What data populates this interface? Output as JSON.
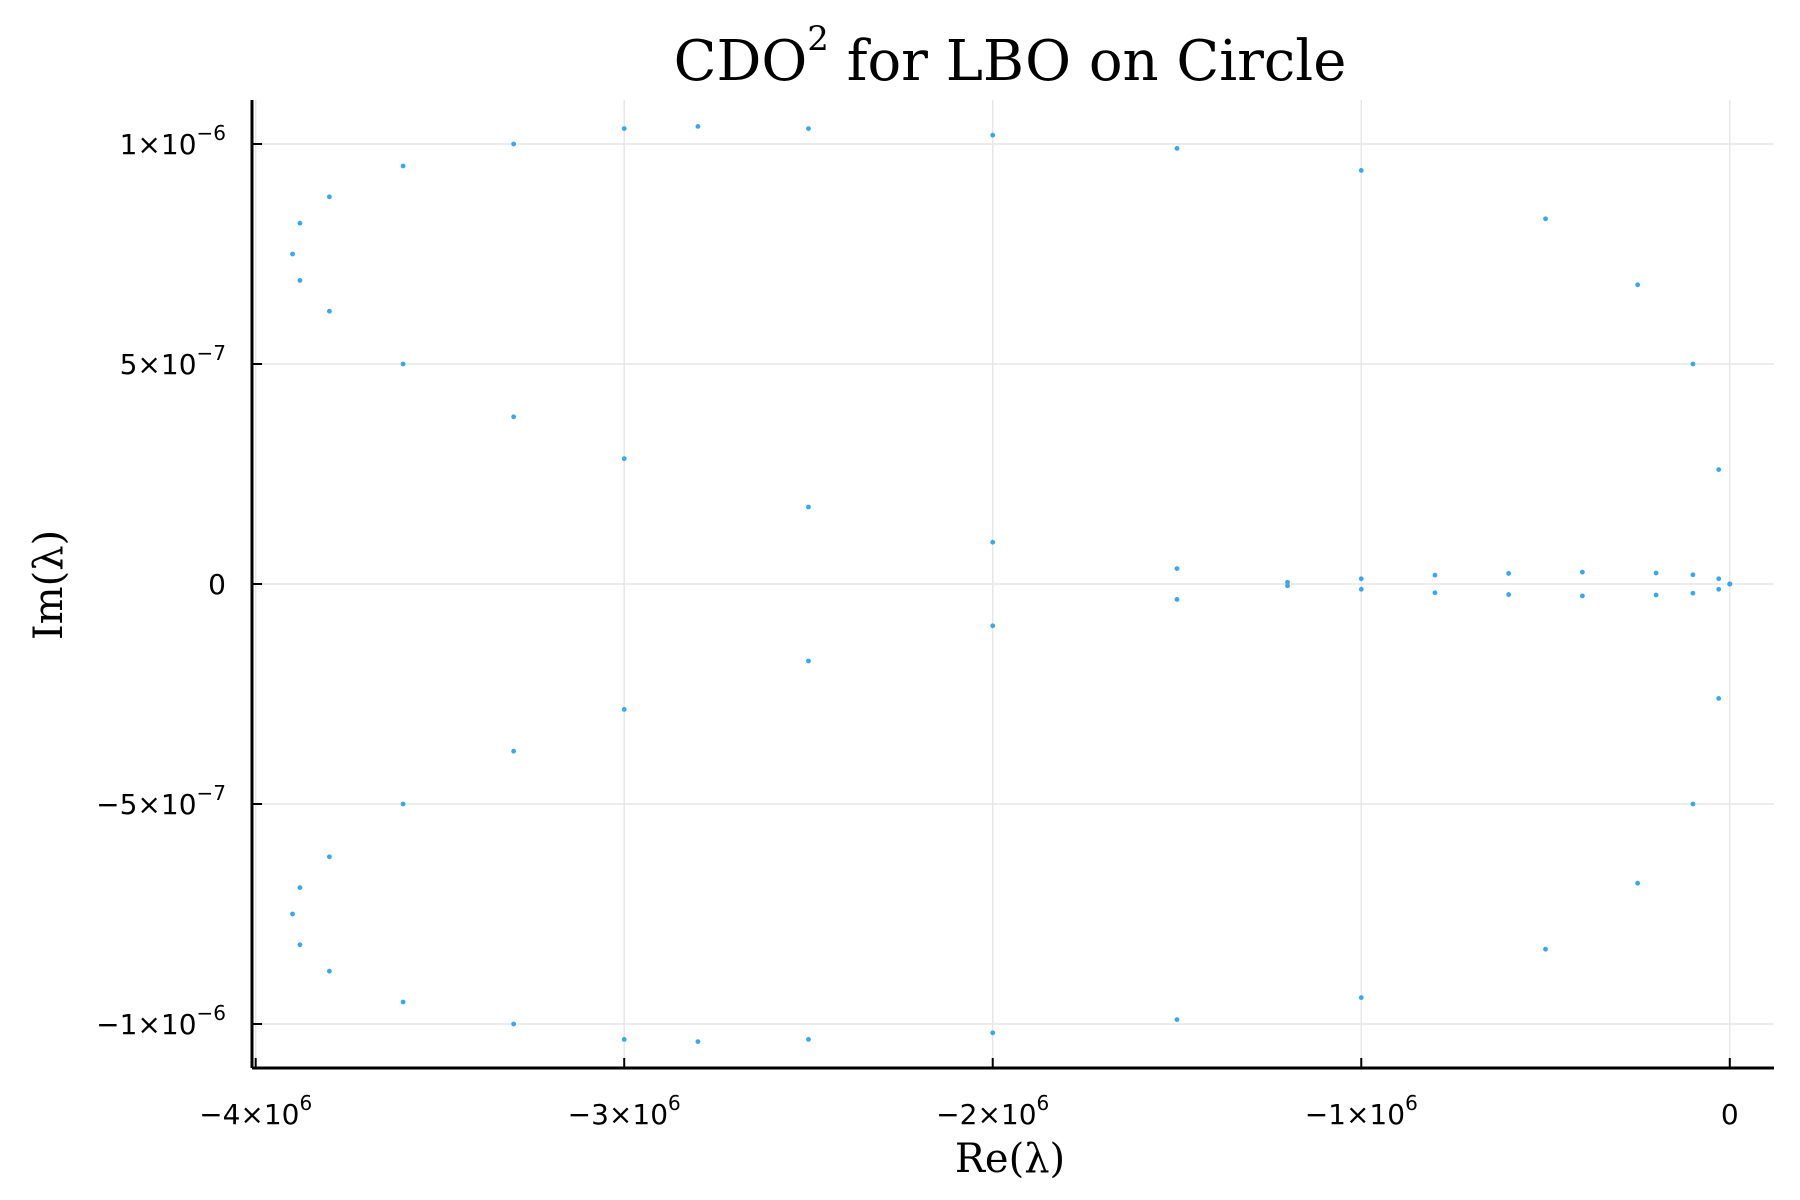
{
  "chart_data": {
    "type": "scatter",
    "title": "CDO² for LBO on Circle",
    "title_main": "CDO",
    "title_sup": "2",
    "title_rest": " for LBO on Circle",
    "xlabel": "Re(λ)",
    "ylabel": "Im(λ)",
    "xlim": [
      -4010000,
      120000
    ],
    "ylim": [
      -1.1e-06,
      1.1e-06
    ],
    "grid": true,
    "legend": "none",
    "color": "#36a8ee",
    "x_ticks": [
      {
        "value": -4000000,
        "base": "−4×10",
        "exp": "6"
      },
      {
        "value": -3000000,
        "base": "−3×10",
        "exp": "6"
      },
      {
        "value": -2000000,
        "base": "−2×10",
        "exp": "6"
      },
      {
        "value": -1000000,
        "base": "−1×10",
        "exp": "6"
      },
      {
        "value": 0,
        "base": "0",
        "exp": ""
      }
    ],
    "y_ticks": [
      {
        "value": 1e-06,
        "base": "1×10",
        "exp": "−6"
      },
      {
        "value": 5e-07,
        "base": "5×10",
        "exp": "−7"
      },
      {
        "value": 0,
        "base": "0",
        "exp": ""
      },
      {
        "value": -5e-07,
        "base": "−5×10",
        "exp": "−7"
      },
      {
        "value": -1e-06,
        "base": "−1×10",
        "exp": "−6"
      }
    ],
    "series": [
      {
        "values": [
          [
            0,
            0
          ],
          [
            -30000,
            2.6e-07
          ],
          [
            -100000,
            5e-07
          ],
          [
            -250000,
            6.8e-07
          ],
          [
            -500000,
            8.3e-07
          ],
          [
            -1000000,
            9.4e-07
          ],
          [
            -1500000,
            9.9e-07
          ],
          [
            -2000000,
            1.02e-06
          ],
          [
            -2500000,
            1.035e-06
          ],
          [
            -2800000,
            1.04e-06
          ],
          [
            -3000000,
            1.035e-06
          ],
          [
            -3300000,
            1e-06
          ],
          [
            -3600000,
            9.5e-07
          ],
          [
            -3800000,
            8.8e-07
          ],
          [
            -3880000,
            8.2e-07
          ],
          [
            -3900000,
            7.5e-07
          ],
          [
            -3880000,
            6.9e-07
          ],
          [
            -3800000,
            6.2e-07
          ],
          [
            -3600000,
            5e-07
          ],
          [
            -3300000,
            3.8e-07
          ],
          [
            -3000000,
            2.85e-07
          ],
          [
            -2500000,
            1.75e-07
          ],
          [
            -2000000,
            9.5e-08
          ],
          [
            -1500000,
            3.5e-08
          ],
          [
            -1200000,
            4e-09
          ],
          [
            -1000000,
            1.2e-08
          ],
          [
            -800000,
            2e-08
          ],
          [
            -600000,
            2.4e-08
          ],
          [
            -400000,
            2.7e-08
          ],
          [
            -200000,
            2.5e-08
          ],
          [
            -100000,
            2.1e-08
          ],
          [
            -30000,
            1.2e-08
          ],
          [
            0,
            0
          ],
          [
            -30000,
            -2.6e-07
          ],
          [
            -100000,
            -5e-07
          ],
          [
            -250000,
            -6.8e-07
          ],
          [
            -500000,
            -8.3e-07
          ],
          [
            -1000000,
            -9.4e-07
          ],
          [
            -1500000,
            -9.9e-07
          ],
          [
            -2000000,
            -1.02e-06
          ],
          [
            -2500000,
            -1.035e-06
          ],
          [
            -2800000,
            -1.04e-06
          ],
          [
            -3000000,
            -1.035e-06
          ],
          [
            -3300000,
            -1e-06
          ],
          [
            -3600000,
            -9.5e-07
          ],
          [
            -3800000,
            -8.8e-07
          ],
          [
            -3880000,
            -8.2e-07
          ],
          [
            -3900000,
            -7.5e-07
          ],
          [
            -3880000,
            -6.9e-07
          ],
          [
            -3800000,
            -6.2e-07
          ],
          [
            -3600000,
            -5e-07
          ],
          [
            -3300000,
            -3.8e-07
          ],
          [
            -3000000,
            -2.85e-07
          ],
          [
            -2500000,
            -1.75e-07
          ],
          [
            -2000000,
            -9.5e-08
          ],
          [
            -1500000,
            -3.5e-08
          ],
          [
            -1200000,
            -4e-09
          ],
          [
            -1000000,
            -1.2e-08
          ],
          [
            -800000,
            -2e-08
          ],
          [
            -600000,
            -2.4e-08
          ],
          [
            -400000,
            -2.7e-08
          ],
          [
            -200000,
            -2.5e-08
          ],
          [
            -100000,
            -2.1e-08
          ],
          [
            -30000,
            -1.2e-08
          ],
          [
            0,
            0
          ]
        ]
      }
    ]
  }
}
